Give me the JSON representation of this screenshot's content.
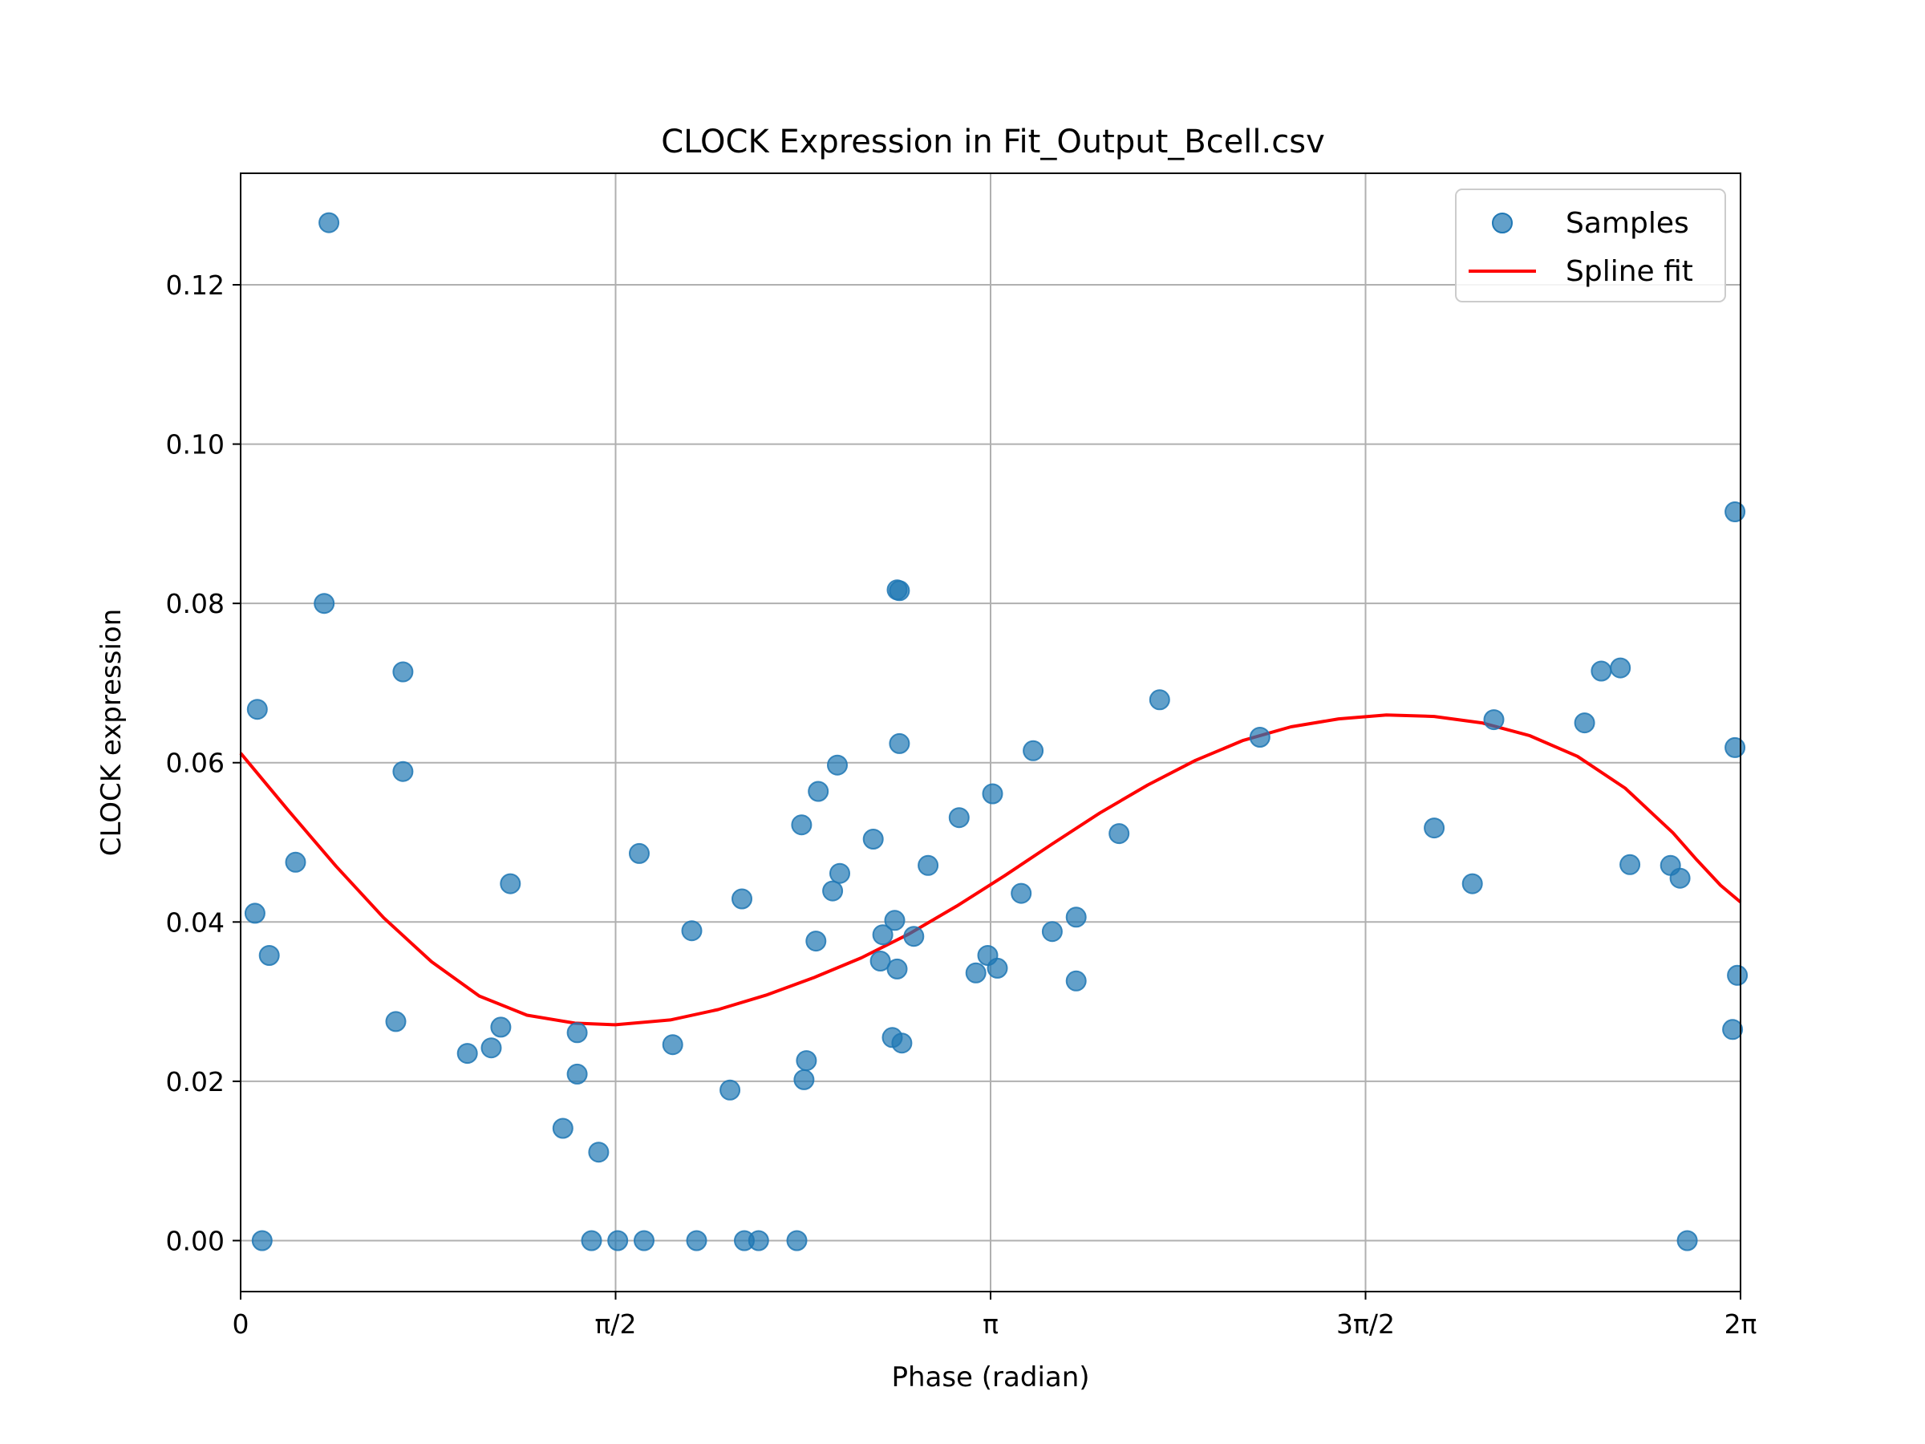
{
  "chart_data": {
    "type": "scatter",
    "title": "CLOCK Expression in Fit_Output_Bcell.csv",
    "xlabel": "Phase (radian)",
    "ylabel": "CLOCK expression",
    "xlim": [
      0,
      6.2832
    ],
    "ylim": [
      -0.0064,
      0.134
    ],
    "grid": true,
    "legend_position": "upper-right",
    "x_ticks": [
      {
        "value": 0,
        "label": "0"
      },
      {
        "value": 1.5708,
        "label": "π/2"
      },
      {
        "value": 3.1416,
        "label": "π"
      },
      {
        "value": 4.7124,
        "label": "3π/2"
      },
      {
        "value": 6.2832,
        "label": "2π"
      }
    ],
    "y_ticks": [
      {
        "value": 0.0,
        "label": "0.00"
      },
      {
        "value": 0.02,
        "label": "0.02"
      },
      {
        "value": 0.04,
        "label": "0.04"
      },
      {
        "value": 0.06,
        "label": "0.06"
      },
      {
        "value": 0.08,
        "label": "0.08"
      },
      {
        "value": 0.1,
        "label": "0.10"
      },
      {
        "value": 0.12,
        "label": "0.12"
      }
    ],
    "colors": {
      "samples": "#1f77b4",
      "spline": "#ff0000",
      "grid": "#b0b0b0"
    },
    "series": [
      {
        "name": "Samples",
        "kind": "scatter",
        "points": [
          [
            0.07,
            0.0667
          ],
          [
            0.06,
            0.0411
          ],
          [
            0.12,
            0.0358
          ],
          [
            0.09,
            0.0
          ],
          [
            0.23,
            0.0475
          ],
          [
            0.35,
            0.08
          ],
          [
            0.37,
            0.1278
          ],
          [
            0.65,
            0.0275
          ],
          [
            0.68,
            0.0714
          ],
          [
            0.68,
            0.0589
          ],
          [
            0.95,
            0.0235
          ],
          [
            1.05,
            0.0242
          ],
          [
            1.09,
            0.0268
          ],
          [
            1.13,
            0.0448
          ],
          [
            1.35,
            0.0141
          ],
          [
            1.41,
            0.0261
          ],
          [
            1.41,
            0.0209
          ],
          [
            1.47,
            0.0
          ],
          [
            1.5,
            0.0111
          ],
          [
            1.58,
            0.0
          ],
          [
            1.67,
            0.0486
          ],
          [
            1.69,
            0.0
          ],
          [
            1.81,
            0.0246
          ],
          [
            1.89,
            0.0389
          ],
          [
            1.91,
            0.0
          ],
          [
            2.05,
            0.0189
          ],
          [
            2.1,
            0.0429
          ],
          [
            2.11,
            0.0
          ],
          [
            2.17,
            0.0
          ],
          [
            2.33,
            0.0
          ],
          [
            2.35,
            0.0522
          ],
          [
            2.36,
            0.0202
          ],
          [
            2.37,
            0.0226
          ],
          [
            2.41,
            0.0376
          ],
          [
            2.42,
            0.0564
          ],
          [
            2.48,
            0.0439
          ],
          [
            2.5,
            0.0597
          ],
          [
            2.51,
            0.0461
          ],
          [
            2.65,
            0.0504
          ],
          [
            2.68,
            0.0351
          ],
          [
            2.69,
            0.0384
          ],
          [
            2.73,
            0.0255
          ],
          [
            2.74,
            0.0402
          ],
          [
            2.75,
            0.0341
          ],
          [
            2.75,
            0.0817
          ],
          [
            2.76,
            0.0816
          ],
          [
            2.76,
            0.0624
          ],
          [
            2.77,
            0.0248
          ],
          [
            2.82,
            0.0382
          ],
          [
            2.88,
            0.0471
          ],
          [
            3.01,
            0.0531
          ],
          [
            3.08,
            0.0336
          ],
          [
            3.13,
            0.0358
          ],
          [
            3.15,
            0.0561
          ],
          [
            3.17,
            0.0342
          ],
          [
            3.27,
            0.0436
          ],
          [
            3.32,
            0.0615
          ],
          [
            3.4,
            0.0388
          ],
          [
            3.5,
            0.0406
          ],
          [
            3.5,
            0.0326
          ],
          [
            3.68,
            0.0511
          ],
          [
            3.85,
            0.0679
          ],
          [
            4.27,
            0.0632
          ],
          [
            5.0,
            0.0518
          ],
          [
            5.16,
            0.0448
          ],
          [
            5.25,
            0.0654
          ],
          [
            5.63,
            0.065
          ],
          [
            5.7,
            0.0715
          ],
          [
            5.78,
            0.0719
          ],
          [
            5.82,
            0.0472
          ],
          [
            5.99,
            0.0471
          ],
          [
            6.03,
            0.0455
          ],
          [
            6.06,
            0.0
          ],
          [
            6.25,
            0.0265
          ],
          [
            6.26,
            0.0915
          ],
          [
            6.26,
            0.0619
          ],
          [
            6.27,
            0.0333
          ]
        ]
      },
      {
        "name": "Spline fit",
        "kind": "line",
        "points": [
          [
            0.0,
            0.0612
          ],
          [
            0.2,
            0.054
          ],
          [
            0.4,
            0.047
          ],
          [
            0.6,
            0.0405
          ],
          [
            0.8,
            0.035
          ],
          [
            1.0,
            0.0307
          ],
          [
            1.2,
            0.0283
          ],
          [
            1.4,
            0.0273
          ],
          [
            1.57,
            0.0271
          ],
          [
            1.8,
            0.0277
          ],
          [
            2.0,
            0.029
          ],
          [
            2.2,
            0.0308
          ],
          [
            2.4,
            0.033
          ],
          [
            2.6,
            0.0355
          ],
          [
            2.8,
            0.0385
          ],
          [
            3.0,
            0.042
          ],
          [
            3.2,
            0.0458
          ],
          [
            3.4,
            0.0498
          ],
          [
            3.6,
            0.0537
          ],
          [
            3.8,
            0.0572
          ],
          [
            4.0,
            0.0603
          ],
          [
            4.2,
            0.0628
          ],
          [
            4.4,
            0.0645
          ],
          [
            4.6,
            0.0655
          ],
          [
            4.8,
            0.066
          ],
          [
            5.0,
            0.0658
          ],
          [
            5.2,
            0.065
          ],
          [
            5.4,
            0.0634
          ],
          [
            5.6,
            0.0608
          ],
          [
            5.8,
            0.0568
          ],
          [
            6.0,
            0.0512
          ],
          [
            6.1,
            0.0478
          ],
          [
            6.2,
            0.0446
          ],
          [
            6.2832,
            0.0425
          ]
        ]
      }
    ]
  }
}
